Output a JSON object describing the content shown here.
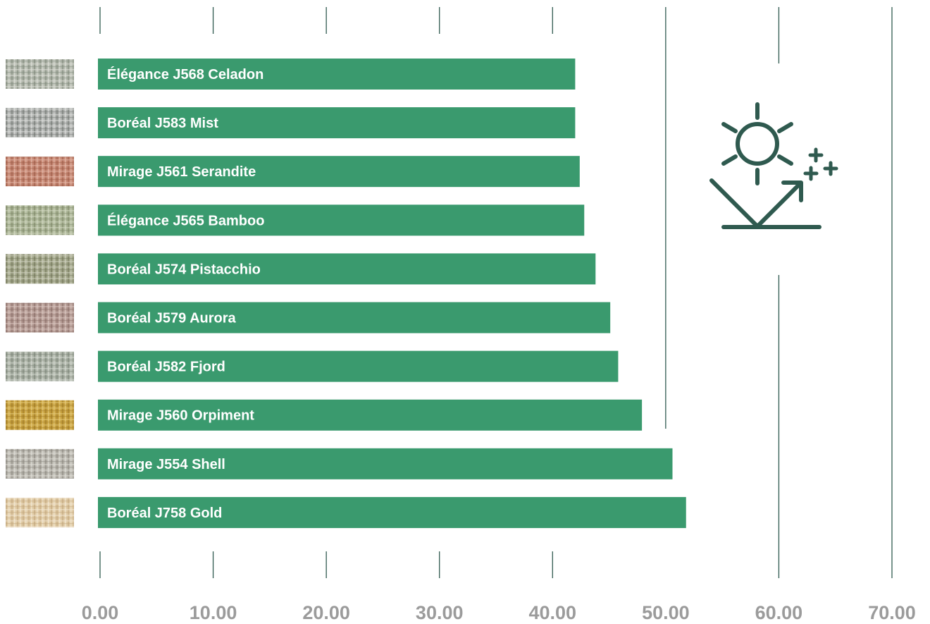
{
  "chart_data": {
    "type": "bar",
    "orientation": "horizontal",
    "categories": [
      "Élégance J568 Celadon",
      "Boréal J583 Mist",
      "Mirage J561 Serandite",
      "Élégance J565 Bamboo",
      "Boréal J574 Pistacchio",
      "Boréal J579 Aurora",
      "Boréal J582 Fjord",
      "Mirage J560 Orpiment",
      "Mirage J554 Shell",
      "Boréal J758 Gold"
    ],
    "values": [
      42.0,
      42.0,
      42.4,
      42.8,
      43.8,
      45.1,
      45.8,
      47.9,
      50.6,
      51.8
    ],
    "xlim": [
      0,
      70
    ],
    "x_ticks": [
      "0.00",
      "10.00",
      "20.00",
      "30.00",
      "40.00",
      "50.00",
      "60.00",
      "70.00"
    ],
    "grid": true,
    "legend": "none",
    "title": "",
    "xlabel": "",
    "ylabel": ""
  },
  "colors": {
    "bar": "#3a9a6e",
    "grid": "#2f5a4f",
    "tick_text": "#9b9b9b",
    "icon": "#2f5a4f"
  },
  "swatches": [
    {
      "name": "celadon",
      "base": "#b3b8ad",
      "dark": "#7b8577",
      "light": "#dde0d8"
    },
    {
      "name": "mist",
      "base": "#aeb1ae",
      "dark": "#6e726f",
      "light": "#dcdddb"
    },
    {
      "name": "serandite",
      "base": "#c58672",
      "dark": "#9a5a47",
      "light": "#e4b8a8"
    },
    {
      "name": "bamboo",
      "base": "#aab495",
      "dark": "#7b8566",
      "light": "#d3d8c3"
    },
    {
      "name": "pistacchio",
      "base": "#a3a78a",
      "dark": "#6f7358",
      "light": "#cfd1bf"
    },
    {
      "name": "aurora",
      "base": "#b49a93",
      "dark": "#856a64",
      "light": "#dac7c1"
    },
    {
      "name": "fjord",
      "base": "#aab1a5",
      "dark": "#778074",
      "light": "#d6dad2"
    },
    {
      "name": "orpiment",
      "base": "#c7a13f",
      "dark": "#9b7524",
      "light": "#e6cb7c"
    },
    {
      "name": "shell",
      "base": "#bbb8b0",
      "dark": "#86837b",
      "light": "#dfddd7"
    },
    {
      "name": "gold",
      "base": "#e0cba5",
      "dark": "#bfa27a",
      "light": "#f3e8d5"
    }
  ],
  "icon": {
    "name": "sun-reflection-icon"
  }
}
